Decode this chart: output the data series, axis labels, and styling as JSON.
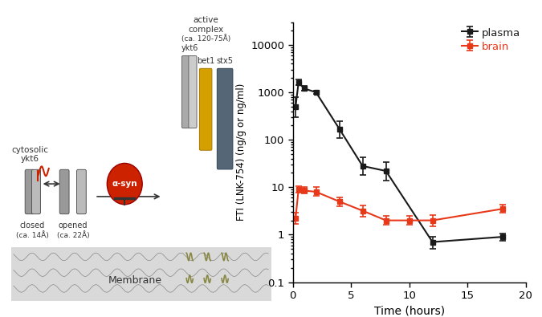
{
  "plasma_x": [
    0.25,
    0.5,
    1.0,
    2.0,
    4.0,
    6.0,
    8.0,
    12.0,
    18.0
  ],
  "plasma_y": [
    500,
    1600,
    1200,
    1000,
    170,
    28,
    22,
    0.7,
    0.9
  ],
  "plasma_yerr_lo": [
    200,
    200,
    100,
    80,
    60,
    10,
    8,
    0.2,
    0.15
  ],
  "plasma_yerr_hi": [
    300,
    250,
    150,
    100,
    80,
    15,
    12,
    0.2,
    0.15
  ],
  "brain_x": [
    0.25,
    0.5,
    1.0,
    2.0,
    4.0,
    6.0,
    8.0,
    10.0,
    12.0,
    18.0
  ],
  "brain_y": [
    2.2,
    9.0,
    8.5,
    8.0,
    5.0,
    3.2,
    2.0,
    2.0,
    2.0,
    3.5
  ],
  "brain_yerr_lo": [
    0.5,
    1.2,
    1.2,
    1.5,
    1.0,
    0.8,
    0.4,
    0.4,
    0.5,
    0.6
  ],
  "brain_yerr_hi": [
    0.7,
    1.5,
    1.5,
    2.0,
    1.2,
    1.0,
    0.5,
    0.5,
    0.6,
    0.8
  ],
  "plasma_color": "#1a1a1a",
  "brain_color": "#e8381a",
  "xlabel": "Time (hours)",
  "ylabel": "FTI (LNK-754) (ng/g or ng/ml)",
  "ylim": [
    0.1,
    30000
  ],
  "xlim": [
    0,
    20
  ],
  "xticks": [
    0,
    5,
    10,
    15,
    20
  ],
  "legend_plasma": "plasma",
  "legend_brain": "brain",
  "background_color": "#ffffff",
  "fig_width": 6.75,
  "fig_height": 3.95,
  "fig_dpi": 100,
  "diagram_elements": {
    "membrane_y": 0.18,
    "membrane_height": 0.12,
    "membrane_color": "#cccccc"
  }
}
